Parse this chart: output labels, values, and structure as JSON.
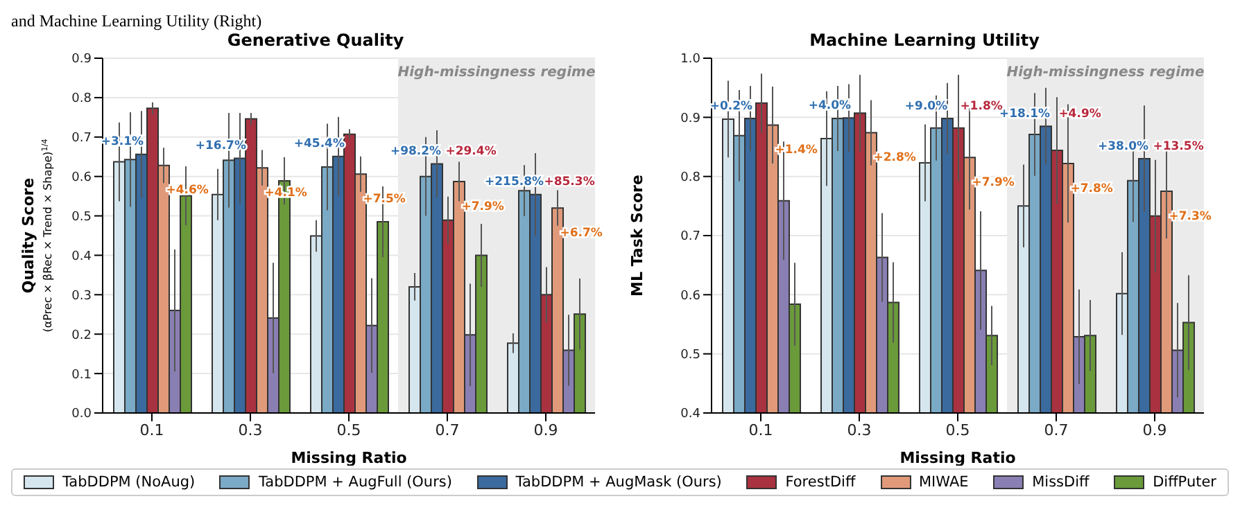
{
  "chart_data": [
    {
      "type": "bar",
      "title": "Generative Quality",
      "xlabel": "Missing Ratio",
      "ylabel": "Quality Score\n(αPrec × βRec × Trend × Shape)$^{1/4}$",
      "categories": [
        "0.1",
        "0.3",
        "0.5",
        "0.7",
        "0.9"
      ],
      "series": [
        {
          "name": "TabDDPM (NoAug)",
          "color": "#d6e6ee",
          "values": [
            0.637,
            0.554,
            0.449,
            0.32,
            0.177
          ],
          "errors": [
            0.1,
            0.065,
            0.04,
            0.035,
            0.025
          ]
        },
        {
          "name": "TabDDPM + AugFull (Ours)",
          "color": "#7aaac6",
          "values": [
            0.643,
            0.641,
            0.624,
            0.6,
            0.564
          ],
          "errors": [
            0.12,
            0.12,
            0.11,
            0.1,
            0.065
          ]
        },
        {
          "name": "TabDDPM + AugMask (Ours)",
          "color": "#3a6a9e",
          "values": [
            0.656,
            0.646,
            0.651,
            0.632,
            0.554
          ],
          "errors": [
            0.11,
            0.115,
            0.1,
            0.085,
            0.105
          ]
        },
        {
          "name": "ForestDiff",
          "color": "#a8323f",
          "values": [
            0.773,
            0.746,
            0.707,
            0.489,
            0.3
          ],
          "errors": [
            0.015,
            0.015,
            0.013,
            0.06,
            0.07
          ]
        },
        {
          "name": "MIWAE",
          "color": "#e09a7a",
          "values": [
            0.628,
            0.622,
            0.606,
            0.587,
            0.52
          ],
          "errors": [
            0.045,
            0.045,
            0.045,
            0.05,
            0.045
          ]
        },
        {
          "name": "MissDiff",
          "color": "#8a7fb3",
          "values": [
            0.26,
            0.241,
            0.222,
            0.198,
            0.159
          ],
          "errors": [
            0.155,
            0.14,
            0.12,
            0.13,
            0.09
          ]
        },
        {
          "name": "DiffPuter",
          "color": "#6a9a3a",
          "values": [
            0.551,
            0.589,
            0.485,
            0.4,
            0.251
          ],
          "errors": [
            0.075,
            0.06,
            0.09,
            0.08,
            0.09
          ]
        }
      ],
      "ylim": [
        0,
        0.9
      ],
      "yticks": [
        {
          "value": 0,
          "label": "0.0"
        },
        0.1,
        0.2,
        0.3,
        0.4,
        0.5,
        0.6,
        0.7,
        0.8,
        0.9
      ],
      "grid": "y",
      "legend": "bottom",
      "bands": [
        {
          "axis": "x",
          "from": "0.7",
          "to": "0.9",
          "label": "High-missingness regime",
          "color": "#ebebeb"
        }
      ],
      "annotations": [
        "and Machine Learning Utility (Right)",
        {
          "text": "+3.1%",
          "x": "0.1",
          "y": 0.656
        },
        {
          "text": "+4.6%",
          "x": "0.1",
          "y": 0.628
        },
        {
          "text": "+16.7%",
          "x": "0.3",
          "y": 0.646
        },
        {
          "text": "+4.1%",
          "x": "0.3",
          "y": 0.622
        },
        {
          "text": "+45.4%",
          "x": "0.5",
          "y": 0.651
        },
        {
          "text": "+7.5%",
          "x": "0.5",
          "y": 0.606
        },
        {
          "text": "+98.2%",
          "x": "0.7",
          "y": 0.632
        },
        {
          "text": "+29.4%",
          "x": "0.7",
          "y": 0.632
        },
        {
          "text": "+7.9%",
          "x": "0.7",
          "y": 0.587
        },
        {
          "text": "+215.8%",
          "x": "0.9",
          "y": 0.554
        },
        {
          "text": "+85.3%",
          "x": "0.9",
          "y": 0.554
        },
        {
          "text": "+6.7%",
          "x": "0.9",
          "y": 0.52
        }
      ]
    },
    {
      "type": "bar",
      "title": "Machine Learning Utility",
      "xlabel": "Missing Ratio",
      "ylabel": "ML Task Score",
      "categories": [
        "0.1",
        "0.3",
        "0.5",
        "0.7",
        "0.9"
      ],
      "series": [
        {
          "color": "#d6e6ee",
          "values": [
            0.897,
            0.864,
            0.823,
            0.75,
            0.602
          ],
          "errors": [
            0.065,
            0.08,
            0.065,
            0.07,
            0.07
          ]
        },
        {
          "color": "#7aaac6",
          "values": [
            0.869,
            0.898,
            0.882,
            0.871,
            0.793
          ],
          "errors": [
            0.077,
            0.055,
            0.055,
            0.07,
            0.07
          ]
        },
        {
          "color": "#3a6a9e",
          "values": [
            0.898,
            0.899,
            0.898,
            0.885,
            0.83
          ],
          "errors": [
            0.055,
            0.057,
            0.06,
            0.065,
            0.09
          ]
        },
        {
          "color": "#a8323f",
          "values": [
            0.924,
            0.907,
            0.882,
            0.844,
            0.733
          ],
          "errors": [
            0.05,
            0.065,
            0.09,
            0.09,
            0.095
          ]
        },
        {
          "color": "#e09a7a",
          "values": [
            0.887,
            0.874,
            0.832,
            0.822,
            0.775
          ],
          "errors": [
            0.065,
            0.055,
            0.088,
            0.1,
            0.08
          ]
        },
        {
          "color": "#8a7fb3",
          "values": [
            0.759,
            0.663,
            0.641,
            0.529,
            0.506
          ],
          "errors": [
            0.1,
            0.075,
            0.1,
            0.08,
            0.08
          ]
        },
        {
          "color": "#6a9a3a",
          "values": [
            0.584,
            0.587,
            0.531,
            0.531,
            0.553
          ],
          "errors": [
            0.07,
            0.068,
            0.05,
            0.06,
            0.08
          ]
        }
      ],
      "ylim": [
        0.4,
        1.0
      ],
      "yticks": [
        0.4,
        0.5,
        0.6,
        0.7,
        0.8,
        0.9,
        {
          "value": 1.0,
          "label": "1.0"
        }
      ],
      "grid": "y",
      "bands": [
        {
          "axis": "x",
          "from": "0.7",
          "to": "0.9",
          "label": "High-missingness regime",
          "color": "#ebebeb"
        }
      ],
      "annotations": [
        {
          "text": "+0.2%",
          "x": "0.1",
          "y": 0.898
        },
        {
          "text": "+1.4%",
          "x": "0.1",
          "y": 0.887
        },
        {
          "text": "+4.0%",
          "x": "0.3",
          "y": 0.899
        },
        {
          "text": "+2.8%",
          "x": "0.3",
          "y": 0.874
        },
        {
          "text": "+9.0%",
          "x": "0.5",
          "y": 0.898
        },
        {
          "text": "+1.8%",
          "x": "0.5",
          "y": 0.898
        },
        {
          "text": "+7.9%",
          "x": "0.5",
          "y": 0.832
        },
        {
          "text": "+18.1%",
          "x": "0.7",
          "y": 0.885
        },
        {
          "text": "+4.9%",
          "x": "0.7",
          "y": 0.885
        },
        {
          "text": "+7.8%",
          "x": "0.7",
          "y": 0.822
        },
        {
          "text": "+38.0%",
          "x": "0.9",
          "y": 0.83
        },
        {
          "text": "+13.5%",
          "x": "0.9",
          "y": 0.83
        },
        {
          "text": "+7.3%",
          "x": "0.9",
          "y": 0.775
        }
      ]
    }
  ]
}
